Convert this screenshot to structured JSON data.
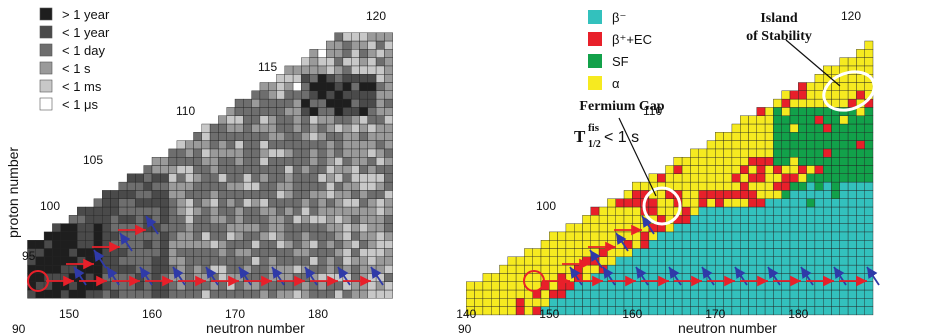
{
  "left_chart": {
    "y_axis_label": "proton  number",
    "x_axis_label": "neutron  number",
    "x_ticks": [
      "150",
      "160",
      "170",
      "180"
    ],
    "inline_z_labels": [
      "90",
      "95",
      "100",
      "105",
      "110",
      "115",
      "120"
    ],
    "legend": [
      {
        "label": "> 1 year",
        "color": "#1e1e1e"
      },
      {
        "label": "< 1 year",
        "color": "#4a4a4a"
      },
      {
        "label": "< 1 day",
        "color": "#6e6e6e"
      },
      {
        "label": "< 1 s",
        "color": "#9a9a9a"
      },
      {
        "label": "< 1 ms",
        "color": "#c8c8c8"
      },
      {
        "label": "< 1 μs",
        "color": "#ffffff"
      }
    ]
  },
  "right_chart": {
    "x_axis_label": "neutron  number",
    "x_ticks": [
      "140",
      "150",
      "160",
      "170",
      "180"
    ],
    "inline_z_labels": [
      "90",
      "100",
      "110",
      "120"
    ],
    "legend": [
      {
        "label": "β⁻",
        "color": "#33c1bd"
      },
      {
        "label": "β⁺+EC",
        "color": "#e8202a"
      },
      {
        "label": "SF",
        "color": "#12a14a"
      },
      {
        "label": "α",
        "color": "#f6ea20"
      }
    ],
    "annotations": {
      "island_line1": "Island",
      "island_line2": "of Stability",
      "gap_line1": "Fermium Gap",
      "gap_T": "T",
      "gap_sup": "fis",
      "gap_sub": "1/2",
      "gap_rest": " < 1 s"
    }
  },
  "colors": {
    "arrow_red": "#e8202a",
    "arrow_blue": "#2f3aa8",
    "circle_red": "#e8202a",
    "circle_white": "#ffffff",
    "cell_border": "#222222"
  }
}
